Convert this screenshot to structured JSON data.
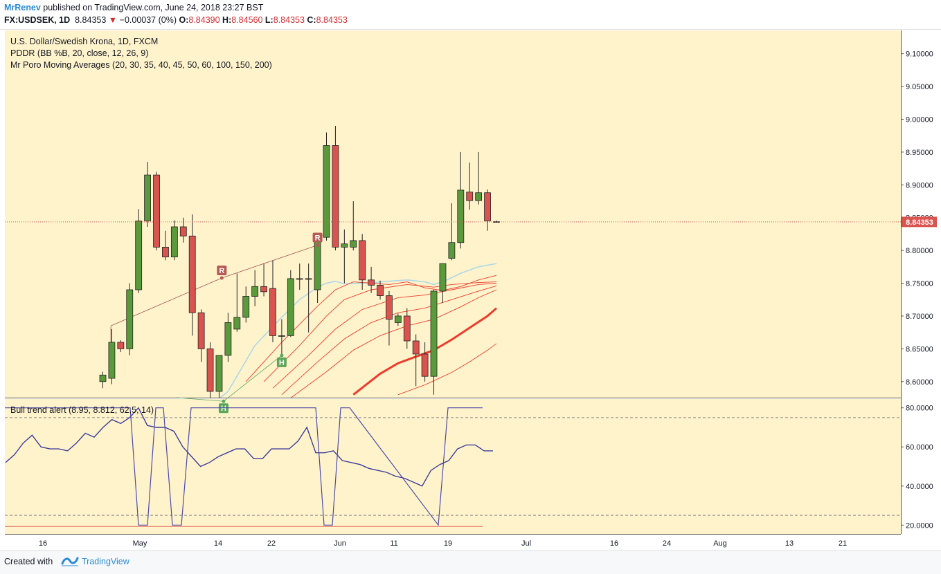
{
  "header": {
    "author": "MrRenev",
    "published": "published on TradingView.com, June 24, 2018 23:27 BST",
    "symbol": "FX:USDSEK, 1D",
    "last": "8.84353",
    "arrow": "▼",
    "change": "−0.00037 (0%)",
    "o_label": "O:",
    "o_value": "8.84390",
    "h_label": "H:",
    "h_value": "8.84560",
    "l_label": "L:",
    "l_value": "8.84353",
    "c_label": "C:",
    "c_value": "8.84353"
  },
  "legend": {
    "title": "U.S. Dollar/Swedish Krona, 1D, FXCM",
    "line2": "PDDR (BB %B, 20, close, 12, 26, 9)",
    "line3": "Mr Poro Moving Averages (20, 30, 35, 40, 45, 50, 60, 100, 150, 200)"
  },
  "lower_legend": "Bull trend alert (8.95, 8.812, 62.5, 14)",
  "price_badge": "8.84353",
  "markers": [
    "R",
    "R",
    "H",
    "H"
  ],
  "footer": {
    "created_with": "Created with",
    "brand": "TradingView"
  },
  "colors": {
    "background": "#fff3cc",
    "up": "#5b9a3c",
    "down": "#d9534f",
    "ma_light": "#add8e6",
    "ma_red": "#ee3c2c",
    "oscillator": "#3d3d9a",
    "alert": "#4a4aa8",
    "price_line": "#d94e4e",
    "marker_r": "#b55a55",
    "marker_h": "#5da65a"
  },
  "chart_data": [
    {
      "type": "candlestick",
      "title": "U.S. Dollar/Swedish Krona, 1D, FXCM",
      "x_ticks": [
        "16",
        "May",
        "14",
        "22",
        "Jun",
        "11",
        "19",
        "Jul",
        "16",
        "24",
        "Aug",
        "13",
        "21"
      ],
      "y_ticks": [
        "9.10000",
        "9.05000",
        "9.00000",
        "8.95000",
        "8.90000",
        "8.85000",
        "8.80000",
        "8.75000",
        "8.70000",
        "8.65000",
        "8.60000"
      ],
      "ylim": [
        8.5755,
        9.1355
      ],
      "candles": [
        {
          "o": 8.6,
          "h": 8.615,
          "l": 8.59,
          "c": 8.61
        },
        {
          "o": 8.605,
          "h": 8.68,
          "l": 8.596,
          "c": 8.66
        },
        {
          "o": 8.66,
          "h": 8.663,
          "l": 8.645,
          "c": 8.65
        },
        {
          "o": 8.65,
          "h": 8.75,
          "l": 8.64,
          "c": 8.74
        },
        {
          "o": 8.74,
          "h": 8.863,
          "l": 8.735,
          "c": 8.845
        },
        {
          "o": 8.845,
          "h": 8.935,
          "l": 8.836,
          "c": 8.915
        },
        {
          "o": 8.915,
          "h": 8.92,
          "l": 8.8,
          "c": 8.805
        },
        {
          "o": 8.805,
          "h": 8.83,
          "l": 8.785,
          "c": 8.79
        },
        {
          "o": 8.79,
          "h": 8.846,
          "l": 8.785,
          "c": 8.836
        },
        {
          "o": 8.836,
          "h": 8.85,
          "l": 8.812,
          "c": 8.822
        },
        {
          "o": 8.822,
          "h": 8.855,
          "l": 8.67,
          "c": 8.705
        },
        {
          "o": 8.705,
          "h": 8.71,
          "l": 8.63,
          "c": 8.65
        },
        {
          "o": 8.65,
          "h": 8.66,
          "l": 8.565,
          "c": 8.585
        },
        {
          "o": 8.585,
          "h": 8.64,
          "l": 8.575,
          "c": 8.64
        },
        {
          "o": 8.64,
          "h": 8.705,
          "l": 8.63,
          "c": 8.69
        },
        {
          "o": 8.68,
          "h": 8.765,
          "l": 8.676,
          "c": 8.698
        },
        {
          "o": 8.698,
          "h": 8.745,
          "l": 8.69,
          "c": 8.73
        },
        {
          "o": 8.73,
          "h": 8.77,
          "l": 8.715,
          "c": 8.745
        },
        {
          "o": 8.745,
          "h": 8.78,
          "l": 8.73,
          "c": 8.737
        },
        {
          "o": 8.742,
          "h": 8.785,
          "l": 8.66,
          "c": 8.67
        },
        {
          "o": 8.67,
          "h": 8.695,
          "l": 8.64,
          "c": 8.67
        },
        {
          "o": 8.67,
          "h": 8.77,
          "l": 8.668,
          "c": 8.757
        },
        {
          "o": 8.757,
          "h": 8.78,
          "l": 8.74,
          "c": 8.757
        },
        {
          "o": 8.757,
          "h": 8.78,
          "l": 8.675,
          "c": 8.757
        },
        {
          "o": 8.74,
          "h": 8.825,
          "l": 8.72,
          "c": 8.82
        },
        {
          "o": 8.82,
          "h": 8.98,
          "l": 8.815,
          "c": 8.96
        },
        {
          "o": 8.96,
          "h": 8.99,
          "l": 8.8,
          "c": 8.805
        },
        {
          "o": 8.805,
          "h": 8.832,
          "l": 8.75,
          "c": 8.81
        },
        {
          "o": 8.805,
          "h": 8.875,
          "l": 8.8,
          "c": 8.815
        },
        {
          "o": 8.815,
          "h": 8.825,
          "l": 8.74,
          "c": 8.755
        },
        {
          "o": 8.755,
          "h": 8.775,
          "l": 8.735,
          "c": 8.747
        },
        {
          "o": 8.747,
          "h": 8.754,
          "l": 8.725,
          "c": 8.731
        },
        {
          "o": 8.731,
          "h": 8.738,
          "l": 8.655,
          "c": 8.695
        },
        {
          "o": 8.69,
          "h": 8.704,
          "l": 8.685,
          "c": 8.7
        },
        {
          "o": 8.7,
          "h": 8.712,
          "l": 8.65,
          "c": 8.662
        },
        {
          "o": 8.662,
          "h": 8.672,
          "l": 8.593,
          "c": 8.642
        },
        {
          "o": 8.642,
          "h": 8.66,
          "l": 8.6,
          "c": 8.608
        },
        {
          "o": 8.608,
          "h": 8.74,
          "l": 8.58,
          "c": 8.738
        },
        {
          "o": 8.738,
          "h": 8.78,
          "l": 8.72,
          "c": 8.78
        },
        {
          "o": 8.788,
          "h": 8.872,
          "l": 8.785,
          "c": 8.812
        },
        {
          "o": 8.812,
          "h": 8.95,
          "l": 8.803,
          "c": 8.892
        },
        {
          "o": 8.889,
          "h": 8.934,
          "l": 8.862,
          "c": 8.876
        },
        {
          "o": 8.876,
          "h": 8.95,
          "l": 8.87,
          "c": 8.888
        },
        {
          "o": 8.888,
          "h": 8.893,
          "l": 8.83,
          "c": 8.845
        },
        {
          "o": 8.8439,
          "h": 8.8456,
          "l": 8.8435,
          "c": 8.84353
        }
      ],
      "moving_averages": [
        {
          "name": "MA light",
          "values": [
            [
              8,
              8.52
            ],
            [
              14,
              8.585
            ],
            [
              17,
              8.655
            ],
            [
              20,
              8.698
            ],
            [
              22,
              8.725
            ],
            [
              24,
              8.744
            ],
            [
              25,
              8.75
            ],
            [
              26,
              8.753
            ],
            [
              27,
              8.749
            ],
            [
              30,
              8.751
            ],
            [
              34,
              8.755
            ],
            [
              36,
              8.752
            ],
            [
              37,
              8.748
            ],
            [
              38,
              8.752
            ],
            [
              40,
              8.765
            ],
            [
              42,
              8.775
            ],
            [
              44,
              8.78
            ]
          ]
        },
        {
          "name": "MA 1",
          "values": [
            [
              16,
              8.6
            ],
            [
              20,
              8.66
            ],
            [
              24,
              8.715
            ],
            [
              26,
              8.74
            ],
            [
              28,
              8.752
            ],
            [
              30,
              8.75
            ],
            [
              32,
              8.748
            ],
            [
              34,
              8.752
            ],
            [
              36,
              8.743
            ],
            [
              38,
              8.739
            ],
            [
              40,
              8.745
            ],
            [
              42,
              8.755
            ],
            [
              44,
              8.762
            ]
          ]
        },
        {
          "name": "MA 2",
          "values": [
            [
              18,
              8.6
            ],
            [
              22,
              8.655
            ],
            [
              25,
              8.7
            ],
            [
              27,
              8.725
            ],
            [
              30,
              8.74
            ],
            [
              34,
              8.748
            ],
            [
              37,
              8.744
            ],
            [
              39,
              8.748
            ],
            [
              42,
              8.751
            ],
            [
              44,
              8.752
            ]
          ]
        },
        {
          "name": "MA 3",
          "values": [
            [
              19,
              8.59
            ],
            [
              23,
              8.64
            ],
            [
              26,
              8.68
            ],
            [
              29,
              8.71
            ],
            [
              33,
              8.728
            ],
            [
              36,
              8.732
            ],
            [
              39,
              8.74
            ],
            [
              42,
              8.748
            ],
            [
              44,
              8.75
            ]
          ]
        },
        {
          "name": "MA 4",
          "values": [
            [
              20,
              8.58
            ],
            [
              24,
              8.63
            ],
            [
              27,
              8.665
            ],
            [
              30,
              8.69
            ],
            [
              33,
              8.705
            ],
            [
              36,
              8.712
            ],
            [
              39,
              8.725
            ],
            [
              42,
              8.738
            ],
            [
              44,
              8.746
            ]
          ]
        },
        {
          "name": "MA 5",
          "values": [
            [
              21,
              8.575
            ],
            [
              25,
              8.615
            ],
            [
              28,
              8.648
            ],
            [
              31,
              8.67
            ],
            [
              34,
              8.685
            ],
            [
              37,
              8.695
            ],
            [
              40,
              8.714
            ],
            [
              42,
              8.728
            ],
            [
              44,
              8.74
            ]
          ]
        },
        {
          "name": "MA 6 (bold)",
          "values": [
            [
              28,
              8.58
            ],
            [
              31,
              8.612
            ],
            [
              33,
              8.628
            ],
            [
              35,
              8.638
            ],
            [
              37,
              8.648
            ],
            [
              39,
              8.664
            ],
            [
              41,
              8.682
            ],
            [
              43,
              8.7
            ],
            [
              44,
              8.712
            ]
          ]
        },
        {
          "name": "MA 7",
          "values": [
            [
              33,
              8.58
            ],
            [
              36,
              8.595
            ],
            [
              39,
              8.614
            ],
            [
              41,
              8.63
            ],
            [
              43,
              8.648
            ],
            [
              44,
              8.658
            ]
          ]
        }
      ],
      "annotations": [
        {
          "label": "R",
          "index": 13.3,
          "price": 8.758
        },
        {
          "label": "R",
          "index": 24.0,
          "price": 8.808
        },
        {
          "label": "H",
          "index": 13.5,
          "price": 8.57
        },
        {
          "label": "H",
          "index": 20.0,
          "price": 8.64
        }
      ]
    },
    {
      "type": "line",
      "title": "Bull trend alert (8.95, 8.812, 62.5, 14)",
      "y_ticks": [
        "80.0000",
        "60.0000",
        "40.0000",
        "20.0000"
      ],
      "ylim": [
        15.5,
        84.5
      ],
      "levels": [
        75,
        25
      ],
      "series": [
        {
          "values": [
            52,
            56,
            62,
            66,
            60,
            59,
            59,
            58,
            62,
            67,
            65,
            70,
            74,
            72,
            75,
            80,
            71,
            70,
            70,
            68,
            60,
            55,
            50,
            52,
            55,
            57,
            59,
            59,
            54,
            54,
            59,
            59,
            59,
            63,
            70,
            57,
            57,
            58,
            53,
            52,
            51,
            49,
            48,
            47,
            45,
            44,
            42,
            40,
            48,
            51,
            53,
            59,
            61,
            61,
            58,
            58
          ]
        },
        {
          "values": [
            80,
            80,
            20,
            20,
            80,
            80,
            20,
            20,
            80,
            80,
            80,
            80,
            20,
            20,
            80,
            80,
            20,
            80,
            80,
            20,
            20,
            80,
            80,
            80,
            80,
            80,
            20,
            20,
            20,
            20
          ]
        }
      ]
    }
  ]
}
